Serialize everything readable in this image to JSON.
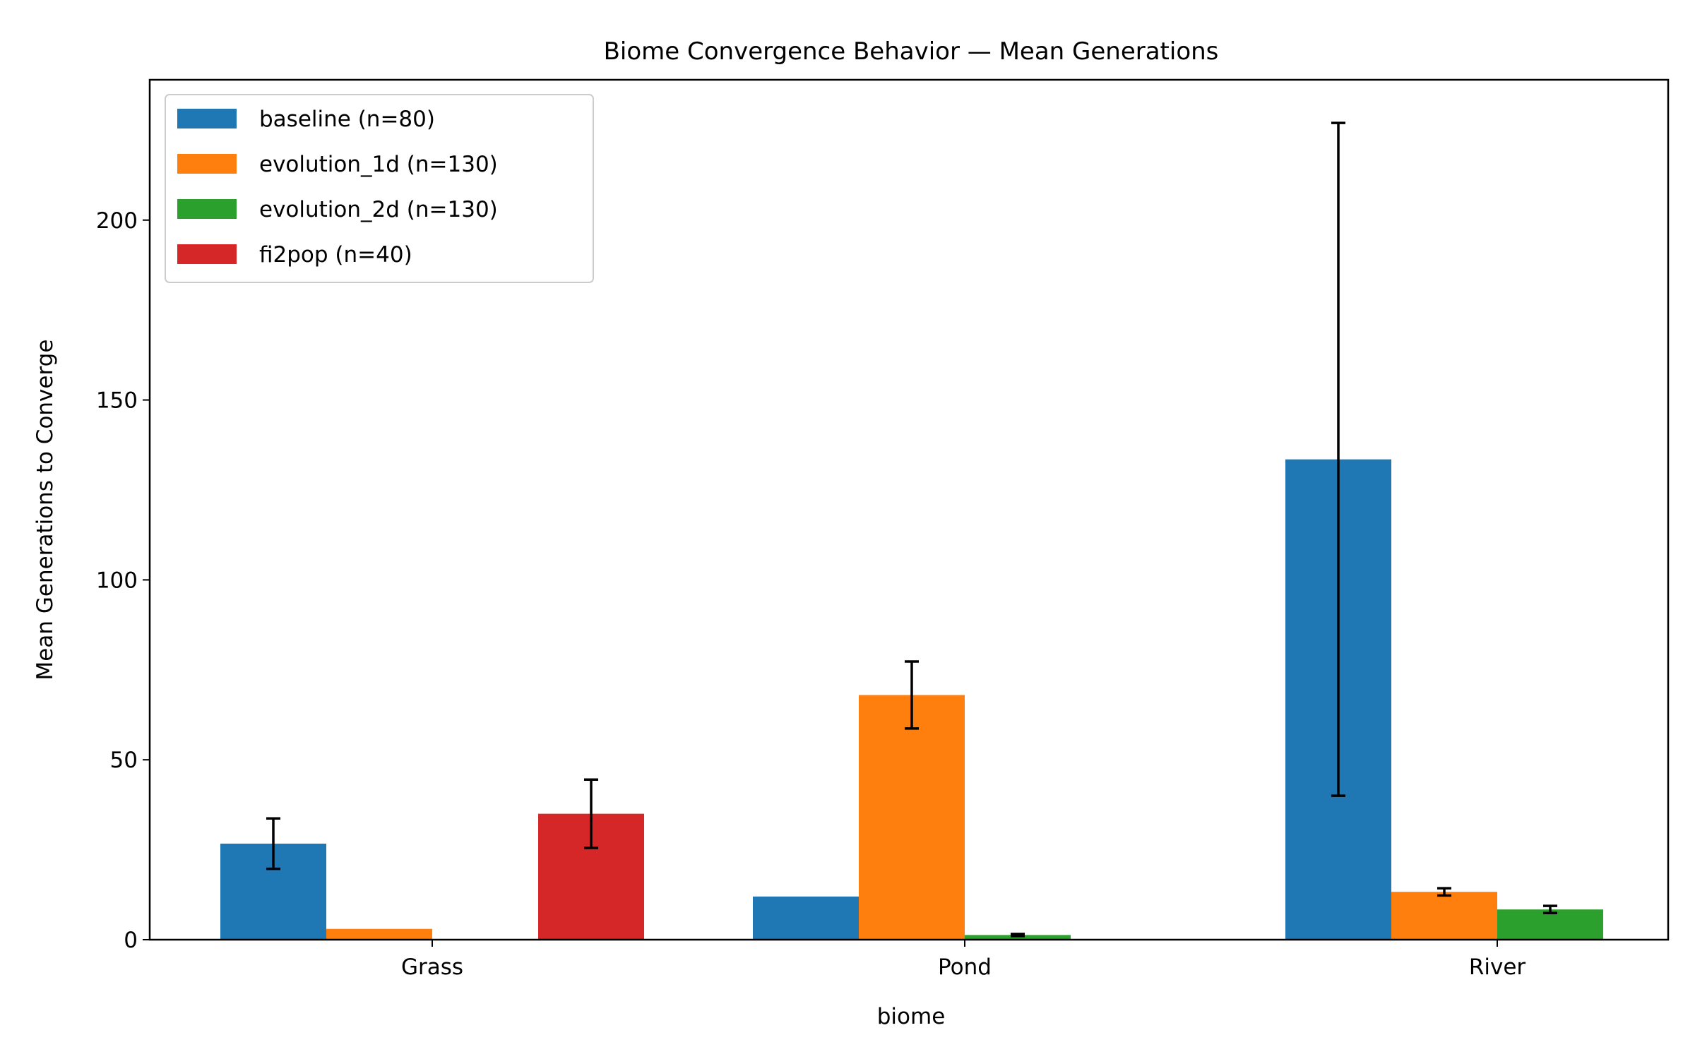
{
  "chart_data": {
    "type": "bar",
    "title": "Biome Convergence Behavior — Mean Generations",
    "xlabel": "biome",
    "ylabel": "Mean Generations to Converge",
    "ylim": [
      0,
      239
    ],
    "yticks": [
      0,
      50,
      100,
      150,
      200
    ],
    "categories": [
      "Grass",
      "Pond",
      "River"
    ],
    "legend_position": "top-left",
    "grid": false,
    "series": [
      {
        "name": "baseline (n=80)",
        "color": "#1f77b4",
        "values": [
          26.7,
          12,
          133.5
        ],
        "errors": [
          7,
          null,
          93.5
        ]
      },
      {
        "name": "evolution_1d (n=130)",
        "color": "#ff7f0e",
        "values": [
          3,
          68,
          13.3
        ],
        "errors": [
          null,
          9.3,
          1
        ]
      },
      {
        "name": "evolution_2d (n=130)",
        "color": "#2ca02c",
        "values": [
          null,
          1.3,
          8.4
        ],
        "errors": [
          null,
          0.3,
          1
        ]
      },
      {
        "name": "fi2pop (n=40)",
        "color": "#d62728",
        "values": [
          35,
          null,
          null
        ],
        "errors": [
          9.5,
          null,
          null
        ]
      }
    ]
  }
}
